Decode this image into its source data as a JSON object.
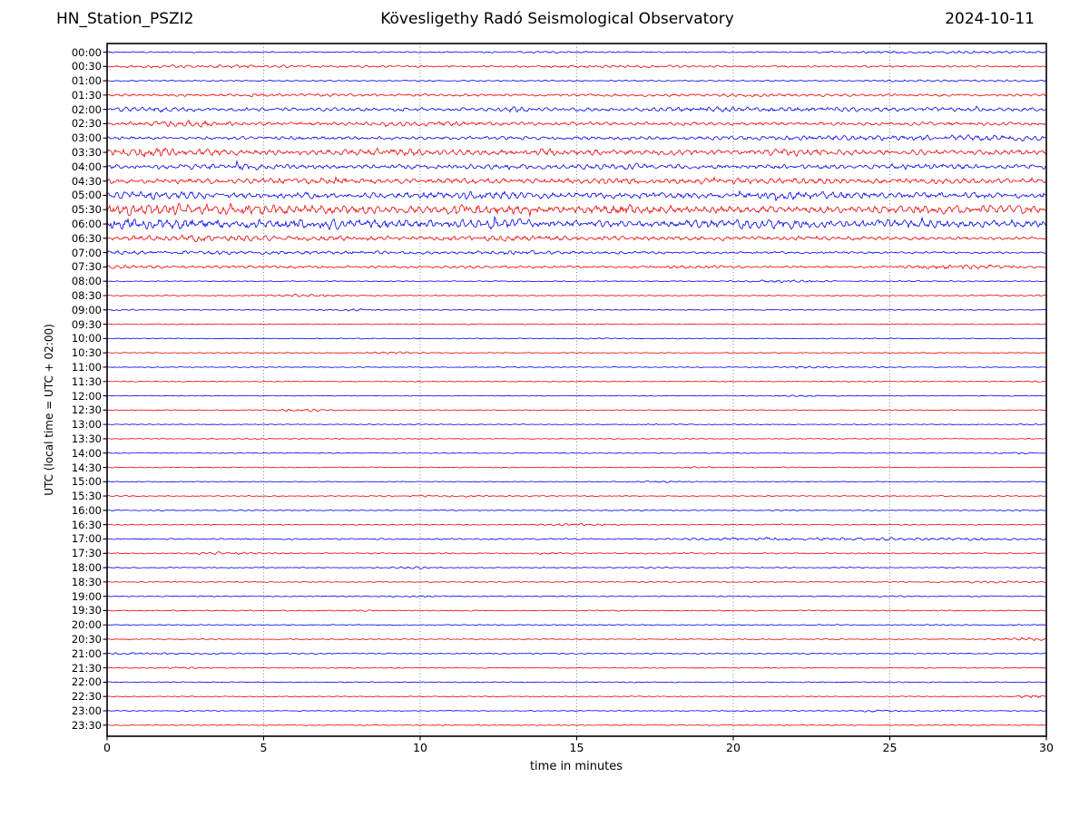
{
  "header": {
    "station": "HN_Station_PSZI2",
    "observatory": "Kövesligethy Radó Seismological Observatory",
    "date": "2024-10-11"
  },
  "axes": {
    "xlabel": "time in minutes",
    "ylabel": "UTC (local time = UTC + 02:00)",
    "x_ticks": [
      0,
      5,
      10,
      15,
      20,
      25,
      30
    ],
    "x_range": [
      0,
      30
    ],
    "grid_x": [
      5,
      10,
      15,
      20,
      25
    ],
    "grid_style": "dotted-vertical"
  },
  "colors": {
    "trace_even": "#0000ee",
    "trace_odd": "#ee0000",
    "axis": "#000000",
    "grid": "#777777",
    "background": "#ffffff"
  },
  "chart_data": {
    "type": "line",
    "subtype": "helicorder-seismogram",
    "minutes_per_row": 30,
    "rows": 48,
    "row_interval_minutes": 30,
    "amplitude_note": "base/base_end = background amplitude per row (relative px), bursts = [center_min, width_min, extra_amp]",
    "traces": [
      {
        "label": "00:00",
        "color": "blue",
        "base": 0.7,
        "base_end": 0.7,
        "bursts": [
          [
            27,
            2.5,
            1.0
          ],
          [
            13.5,
            1.5,
            0.4
          ]
        ]
      },
      {
        "label": "00:30",
        "color": "red",
        "base": 1.3,
        "base_end": 1.0,
        "bursts": [
          [
            3,
            2.5,
            0.7
          ],
          [
            16,
            1.5,
            0.5
          ]
        ]
      },
      {
        "label": "01:00",
        "color": "blue",
        "base": 0.75,
        "base_end": 0.75,
        "bursts": [
          [
            27,
            2,
            0.5
          ]
        ]
      },
      {
        "label": "01:30",
        "color": "red",
        "base": 1.5,
        "base_end": 1.4,
        "bursts": [
          [
            5,
            2,
            0.4
          ],
          [
            20,
            1.5,
            0.5
          ]
        ]
      },
      {
        "label": "02:00",
        "color": "blue",
        "base": 2.0,
        "base_end": 2.0,
        "bursts": [
          [
            1.5,
            0.7,
            1.2
          ],
          [
            13,
            0.6,
            1.1
          ],
          [
            19,
            1,
            0.9
          ],
          [
            23,
            2,
            0.7
          ]
        ]
      },
      {
        "label": "02:30",
        "color": "red",
        "base": 2.0,
        "base_end": 1.9,
        "bursts": [
          [
            2.7,
            0.8,
            2.2
          ],
          [
            10,
            1,
            0.7
          ]
        ]
      },
      {
        "label": "03:00",
        "color": "blue",
        "base": 1.8,
        "base_end": 2.2,
        "bursts": [
          [
            27.5,
            2,
            1.2
          ],
          [
            23,
            1.5,
            0.7
          ]
        ]
      },
      {
        "label": "03:30",
        "color": "red",
        "base": 3.2,
        "base_end": 3.0,
        "bursts": [
          [
            1.5,
            1,
            2.4
          ],
          [
            9,
            1,
            1.4
          ],
          [
            14,
            1,
            1.1
          ],
          [
            22,
            1,
            0.9
          ]
        ]
      },
      {
        "label": "04:00",
        "color": "blue",
        "base": 2.6,
        "base_end": 2.6,
        "bursts": [
          [
            4,
            1,
            0.9
          ],
          [
            17,
            1,
            0.9
          ],
          [
            26,
            1,
            1.1
          ]
        ]
      },
      {
        "label": "04:30",
        "color": "red",
        "base": 3.0,
        "base_end": 3.0,
        "bursts": [
          [
            7,
            1,
            0.9
          ],
          [
            21,
            1.5,
            0.9
          ]
        ]
      },
      {
        "label": "05:00",
        "color": "blue",
        "base": 3.4,
        "base_end": 3.4,
        "bursts": [
          [
            2,
            1,
            1.4
          ],
          [
            12,
            1,
            1.4
          ],
          [
            22,
            1,
            1.4
          ]
        ]
      },
      {
        "label": "05:30",
        "color": "red",
        "base": 4.3,
        "base_end": 4.0,
        "bursts": [
          [
            1,
            1.5,
            2.4
          ],
          [
            5,
            2,
            1.8
          ],
          [
            12,
            1,
            1.8
          ],
          [
            17,
            1,
            1.4
          ],
          [
            27,
            1.5,
            1.4
          ]
        ]
      },
      {
        "label": "06:00",
        "color": "blue",
        "base": 4.1,
        "base_end": 3.8,
        "bursts": [
          [
            1,
            1.5,
            2.4
          ],
          [
            7,
            2,
            1.8
          ],
          [
            13,
            1,
            1.8
          ],
          [
            21,
            1.5,
            1.8
          ],
          [
            25.5,
            1,
            1.4
          ]
        ]
      },
      {
        "label": "06:30",
        "color": "red",
        "base": 3.2,
        "base_end": 1.8,
        "bursts": [
          [
            3,
            1,
            0.9
          ],
          [
            13,
            1,
            0.9
          ]
        ]
      },
      {
        "label": "07:00",
        "color": "blue",
        "base": 2.2,
        "base_end": 1.0,
        "bursts": [
          [
            13.5,
            1,
            0.7
          ]
        ]
      },
      {
        "label": "07:30",
        "color": "red",
        "base": 1.6,
        "base_end": 1.2,
        "bursts": [
          [
            1,
            1.5,
            0.5
          ],
          [
            26.5,
            1,
            1.3
          ],
          [
            28,
            0.8,
            1.1
          ],
          [
            18.5,
            0.7,
            0.6
          ]
        ]
      },
      {
        "label": "08:00",
        "color": "blue",
        "base": 0.55,
        "base_end": 0.55,
        "bursts": [
          [
            21.5,
            0.8,
            1.0
          ],
          [
            13,
            0.4,
            0.4
          ],
          [
            26,
            1.5,
            0.3
          ]
        ]
      },
      {
        "label": "08:30",
        "color": "red",
        "base": 0.55,
        "base_end": 0.55,
        "bursts": [
          [
            6.3,
            0.7,
            1.1
          ],
          [
            24,
            0.5,
            0.4
          ],
          [
            29,
            1,
            0.4
          ]
        ]
      },
      {
        "label": "09:00",
        "color": "blue",
        "base": 0.55,
        "base_end": 0.55,
        "bursts": [
          [
            7.7,
            0.7,
            0.8
          ],
          [
            0.5,
            0.5,
            0.4
          ]
        ]
      },
      {
        "label": "09:30",
        "color": "red",
        "base": 0.5,
        "base_end": 0.5,
        "bursts": [
          [
            12,
            0.4,
            0.3
          ]
        ]
      },
      {
        "label": "10:00",
        "color": "blue",
        "base": 0.5,
        "base_end": 0.5,
        "bursts": [
          [
            15.5,
            0.5,
            0.4
          ],
          [
            27,
            0.3,
            0.3
          ]
        ]
      },
      {
        "label": "10:30",
        "color": "red",
        "base": 0.5,
        "base_end": 0.5,
        "bursts": [
          [
            9.2,
            0.6,
            0.9
          ]
        ]
      },
      {
        "label": "11:00",
        "color": "blue",
        "base": 0.5,
        "base_end": 0.5,
        "bursts": [
          [
            22.4,
            0.5,
            0.8
          ],
          [
            13,
            0.4,
            0.3
          ]
        ]
      },
      {
        "label": "11:30",
        "color": "red",
        "base": 0.5,
        "base_end": 0.5,
        "bursts": [
          [
            24,
            0.4,
            0.4
          ],
          [
            29.5,
            0.3,
            0.3
          ]
        ]
      },
      {
        "label": "12:00",
        "color": "blue",
        "base": 0.45,
        "base_end": 0.45,
        "bursts": [
          [
            22.4,
            0.6,
            0.6
          ]
        ]
      },
      {
        "label": "12:30",
        "color": "red",
        "base": 0.5,
        "base_end": 0.5,
        "bursts": [
          [
            6.3,
            0.6,
            1.2
          ]
        ]
      },
      {
        "label": "13:00",
        "color": "blue",
        "base": 0.5,
        "base_end": 0.5,
        "bursts": [
          [
            17.4,
            0.4,
            0.7
          ],
          [
            29.2,
            0.4,
            0.4
          ]
        ]
      },
      {
        "label": "13:30",
        "color": "red",
        "base": 0.5,
        "base_end": 0.5,
        "bursts": [
          [
            4,
            1.5,
            0.2
          ],
          [
            18.7,
            0.4,
            0.3
          ]
        ]
      },
      {
        "label": "14:00",
        "color": "blue",
        "base": 0.5,
        "base_end": 0.5,
        "bursts": [
          [
            29.2,
            0.5,
            0.7
          ]
        ]
      },
      {
        "label": "14:30",
        "color": "red",
        "base": 0.55,
        "base_end": 0.55,
        "bursts": [
          [
            18.8,
            0.5,
            0.5
          ]
        ]
      },
      {
        "label": "15:00",
        "color": "blue",
        "base": 0.5,
        "base_end": 0.5,
        "bursts": [
          [
            17.8,
            0.6,
            0.8
          ]
        ]
      },
      {
        "label": "15:30",
        "color": "red",
        "base": 0.6,
        "base_end": 0.6,
        "bursts": [
          [
            10.5,
            1.5,
            0.5
          ],
          [
            0.5,
            0.5,
            0.3
          ]
        ]
      },
      {
        "label": "16:00",
        "color": "blue",
        "base": 0.6,
        "base_end": 0.6,
        "bursts": [
          [
            21.9,
            0.4,
            0.4
          ],
          [
            29,
            0.4,
            0.3
          ]
        ]
      },
      {
        "label": "16:30",
        "color": "red",
        "base": 0.6,
        "base_end": 0.6,
        "bursts": [
          [
            15,
            0.7,
            1.1
          ],
          [
            21.5,
            0.4,
            0.4
          ]
        ]
      },
      {
        "label": "17:00",
        "color": "blue",
        "base": 0.85,
        "base_end": 0.9,
        "bursts": [
          [
            19.5,
            0.8,
            0.8
          ],
          [
            21,
            0.5,
            0.8
          ],
          [
            23,
            1,
            0.9
          ],
          [
            25.5,
            1,
            0.8
          ],
          [
            28,
            1,
            0.7
          ]
        ]
      },
      {
        "label": "17:30",
        "color": "red",
        "base": 0.7,
        "base_end": 0.7,
        "bursts": [
          [
            3.8,
            0.8,
            0.9
          ],
          [
            14.2,
            0.5,
            0.5
          ],
          [
            18.5,
            0.5,
            0.5
          ]
        ]
      },
      {
        "label": "18:00",
        "color": "blue",
        "base": 0.6,
        "base_end": 0.6,
        "bursts": [
          [
            9.8,
            0.5,
            0.9
          ],
          [
            17.5,
            0.4,
            0.4
          ]
        ]
      },
      {
        "label": "18:30",
        "color": "red",
        "base": 0.6,
        "base_end": 0.6,
        "bursts": [
          [
            28.3,
            0.8,
            0.9
          ]
        ]
      },
      {
        "label": "19:00",
        "color": "blue",
        "base": 0.65,
        "base_end": 0.65,
        "bursts": [
          [
            9.5,
            0.8,
            0.4
          ],
          [
            25,
            0.5,
            0.3
          ]
        ]
      },
      {
        "label": "19:30",
        "color": "red",
        "base": 0.65,
        "base_end": 0.65,
        "bursts": [
          [
            7.8,
            0.6,
            0.3
          ]
        ]
      },
      {
        "label": "20:00",
        "color": "blue",
        "base": 0.55,
        "base_end": 0.55,
        "bursts": [
          [
            26.8,
            0.4,
            0.3
          ]
        ]
      },
      {
        "label": "20:30",
        "color": "red",
        "base": 0.6,
        "base_end": 0.6,
        "bursts": [
          [
            29.3,
            0.6,
            1.5
          ]
        ]
      },
      {
        "label": "21:00",
        "color": "blue",
        "base": 0.75,
        "base_end": 0.65,
        "bursts": [
          [
            1.3,
            1.5,
            0.6
          ]
        ]
      },
      {
        "label": "21:30",
        "color": "red",
        "base": 0.6,
        "base_end": 0.6,
        "bursts": [
          [
            2.5,
            0.5,
            0.4
          ]
        ]
      },
      {
        "label": "22:00",
        "color": "blue",
        "base": 0.55,
        "base_end": 0.55,
        "bursts": []
      },
      {
        "label": "22:30",
        "color": "red",
        "base": 0.55,
        "base_end": 0.55,
        "bursts": [
          [
            29.6,
            0.35,
            1.6
          ]
        ]
      },
      {
        "label": "23:00",
        "color": "blue",
        "base": 0.55,
        "base_end": 0.55,
        "bursts": [
          [
            24.6,
            0.5,
            1.0
          ]
        ]
      },
      {
        "label": "23:30",
        "color": "red",
        "base": 0.55,
        "base_end": 0.55,
        "bursts": []
      }
    ]
  }
}
